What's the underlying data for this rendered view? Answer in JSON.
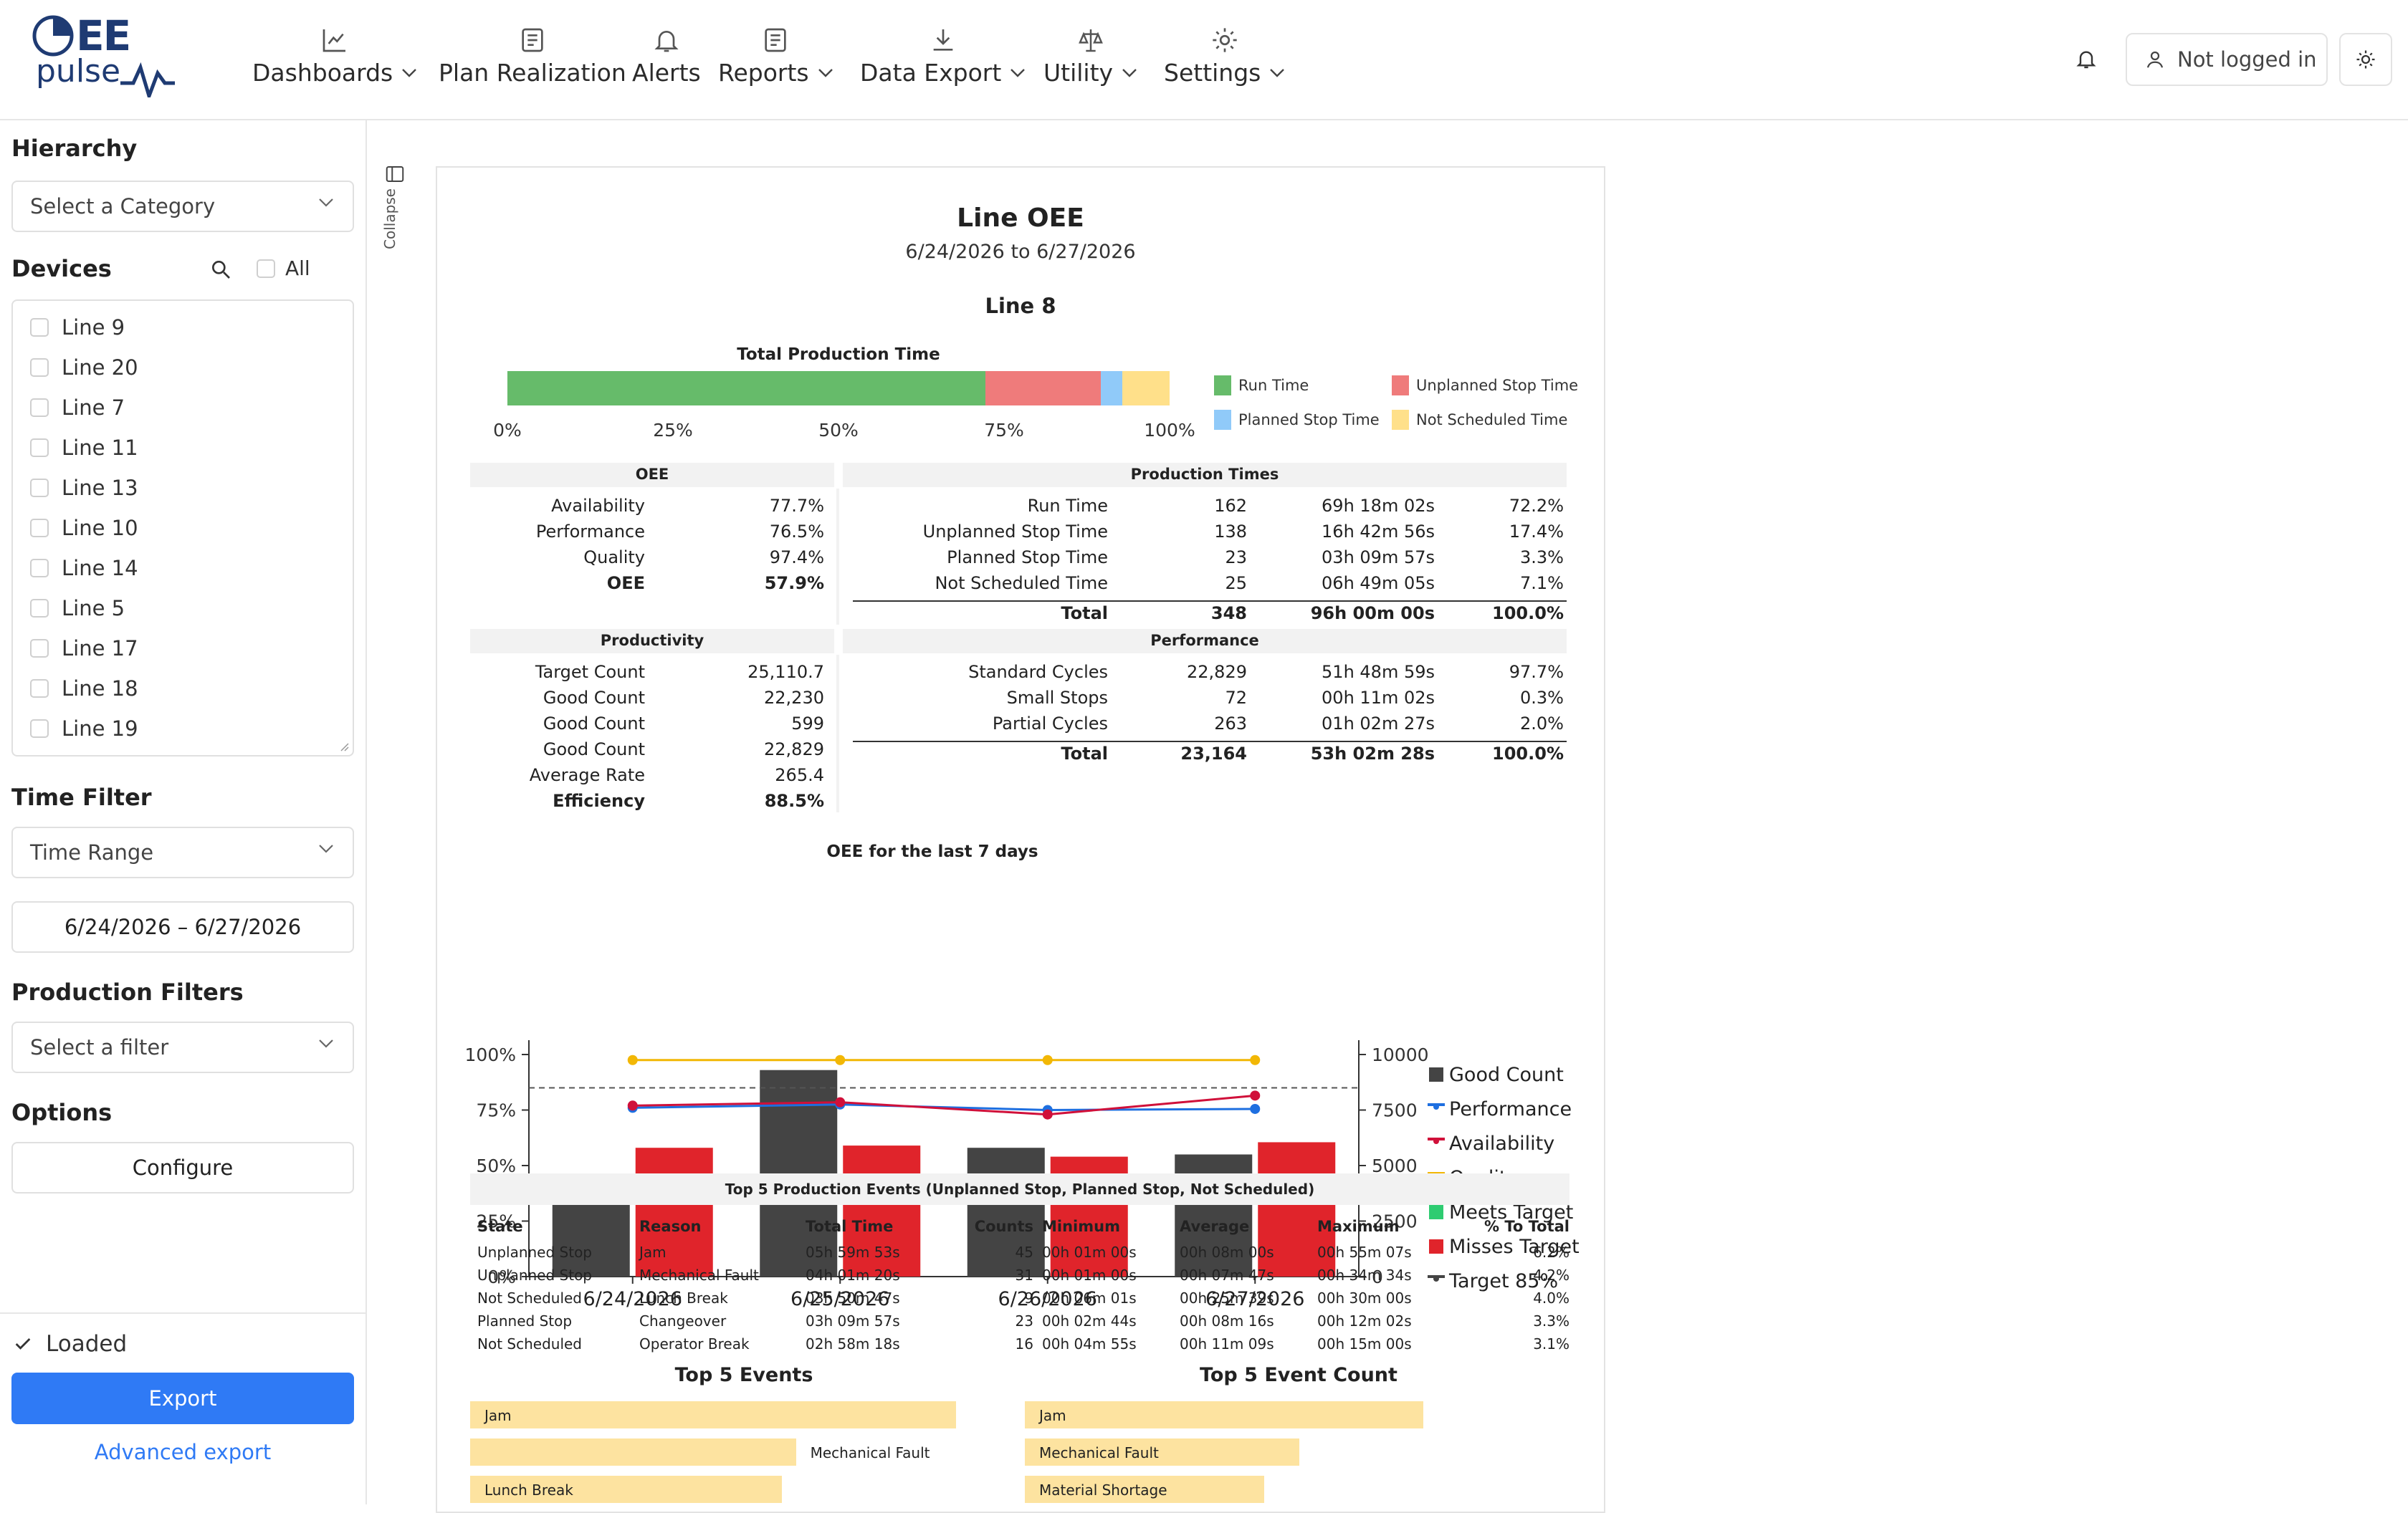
{
  "app": {
    "logo_top": "EE",
    "logo_bottom": "pulse"
  },
  "nav": [
    {
      "label": "Dashboards",
      "icon": "chart-line-icon",
      "has_dropdown": true
    },
    {
      "label": "Plan Realization",
      "icon": "document-icon",
      "has_dropdown": false
    },
    {
      "label": "Alerts",
      "icon": "bell-icon",
      "has_dropdown": false
    },
    {
      "label": "Reports",
      "icon": "document-icon",
      "has_dropdown": true
    },
    {
      "label": "Data Export",
      "icon": "download-icon",
      "has_dropdown": true
    },
    {
      "label": "Utility",
      "icon": "scale-icon",
      "has_dropdown": true
    },
    {
      "label": "Settings",
      "icon": "gear-icon",
      "has_dropdown": true
    }
  ],
  "header": {
    "user_label": "Not logged in"
  },
  "sidebar": {
    "hierarchy_title": "Hierarchy",
    "hierarchy_placeholder": "Select a Category",
    "devices_title": "Devices",
    "all_label": "All",
    "devices": [
      "Line 9",
      "Line 20",
      "Line 7",
      "Line 11",
      "Line 13",
      "Line 10",
      "Line 14",
      "Line 5",
      "Line 17",
      "Line 18",
      "Line 19"
    ],
    "time_filter_title": "Time Filter",
    "time_filter_value": "Time Range",
    "date_range": "6/24/2026 – 6/27/2026",
    "production_filters_title": "Production Filters",
    "production_filter_placeholder": "Select a filter",
    "options_title": "Options",
    "configure_label": "Configure",
    "status_label": "Loaded",
    "export_label": "Export",
    "advanced_export_label": "Advanced export"
  },
  "collapse_label": "Collapse",
  "colors": {
    "run": "#66bb6a",
    "unplanned": "#ef7b7b",
    "planned": "#90caf9",
    "not_scheduled": "#ffe08a",
    "good_count": "#444444",
    "misses_target": "#e0242b",
    "meets_target": "#2ecc71",
    "performance": "#1e6fe0",
    "availability": "#d0103a",
    "quality": "#f2b705",
    "accent": "#2f7af5",
    "bar_event": "#fde3a0"
  },
  "report": {
    "title": "Line OEE",
    "date_range": "6/24/2026 to 6/27/2026",
    "line_name": "Line 8",
    "total_production_title": "Total Production Time",
    "production_bar": [
      {
        "name": "Run Time",
        "pct": 72.2
      },
      {
        "name": "Unplanned Stop Time",
        "pct": 17.4
      },
      {
        "name": "Planned Stop Time",
        "pct": 3.3
      },
      {
        "name": "Not Scheduled Time",
        "pct": 7.1
      }
    ],
    "production_bar_ticks": [
      "0%",
      "25%",
      "50%",
      "75%",
      "100%"
    ],
    "oee_title": "OEE",
    "oee_rows": [
      {
        "label": "Availability",
        "value": "77.7%",
        "bold": false
      },
      {
        "label": "Performance",
        "value": "76.5%",
        "bold": false
      },
      {
        "label": "Quality",
        "value": "97.4%",
        "bold": false
      },
      {
        "label": "OEE",
        "value": "57.9%",
        "bold": true
      }
    ],
    "production_times_title": "Production Times",
    "production_times_rows": [
      {
        "label": "Run Time",
        "count": "162",
        "time": "69h 18m 02s",
        "pct": "72.2%"
      },
      {
        "label": "Unplanned Stop Time",
        "count": "138",
        "time": "16h 42m 56s",
        "pct": "17.4%"
      },
      {
        "label": "Planned Stop Time",
        "count": "23",
        "time": "03h 09m 57s",
        "pct": "3.3%"
      },
      {
        "label": "Not Scheduled Time",
        "count": "25",
        "time": "06h 49m 05s",
        "pct": "7.1%"
      }
    ],
    "production_times_total": {
      "label": "Total",
      "count": "348",
      "time": "96h 00m 00s",
      "pct": "100.0%"
    },
    "productivity_title": "Productivity",
    "productivity_rows": [
      {
        "label": "Target Count",
        "value": "25,110.7",
        "bold": false
      },
      {
        "label": "Good Count",
        "value": "22,230",
        "bold": false
      },
      {
        "label": "Good Count",
        "value": "599",
        "bold": false
      },
      {
        "label": "Good Count",
        "value": "22,829",
        "bold": false
      },
      {
        "label": "Average Rate",
        "value": "265.4",
        "bold": false
      },
      {
        "label": "Efficiency",
        "value": "88.5%",
        "bold": true
      }
    ],
    "performance_title": "Performance",
    "performance_rows": [
      {
        "label": "Standard Cycles",
        "count": "22,829",
        "time": "51h 48m 59s",
        "pct": "97.7%"
      },
      {
        "label": "Small Stops",
        "count": "72",
        "time": "00h 11m 02s",
        "pct": "0.3%"
      },
      {
        "label": "Partial Cycles",
        "count": "263",
        "time": "01h 02m 27s",
        "pct": "2.0%"
      }
    ],
    "performance_total": {
      "label": "Total",
      "count": "23,164",
      "time": "53h 02m 28s",
      "pct": "100.0%"
    },
    "events_title": "Top 5 Production Events (Unplanned Stop, Planned Stop, Not Scheduled)",
    "events_headers": [
      "State",
      "Reason",
      "Total Time",
      "Counts",
      "Minimum",
      "Average",
      "Maximum",
      "% To Total"
    ],
    "events_rows": [
      [
        "Unplanned Stop",
        "Jam",
        "05h 59m 53s",
        "45",
        "00h 01m 00s",
        "00h 08m 00s",
        "00h 55m 07s",
        "6.2%"
      ],
      [
        "Unplanned Stop",
        "Mechanical Fault",
        "04h 01m 20s",
        "31",
        "00h 01m 00s",
        "00h 07m 47s",
        "00h 34m 34s",
        "4.2%"
      ],
      [
        "Not Scheduled",
        "Lunch Break",
        "03h 50m 47s",
        "9",
        "00h 06m 01s",
        "00h 25m 39s",
        "00h 30m 00s",
        "4.0%"
      ],
      [
        "Planned Stop",
        "Changeover",
        "03h 09m 57s",
        "23",
        "00h 02m 44s",
        "00h 08m 16s",
        "00h 12m 02s",
        "3.3%"
      ],
      [
        "Not Scheduled",
        "Operator Break",
        "02h 58m 18s",
        "16",
        "00h 04m 55s",
        "00h 11m 09s",
        "00h 15m 00s",
        "3.1%"
      ]
    ],
    "top5_events_title": "Top 5 Events",
    "top5_events": [
      {
        "label": "Jam",
        "value": 5.998,
        "label_inside": true
      },
      {
        "label": "Mechanical Fault",
        "value": 4.022,
        "label_inside": false
      },
      {
        "label": "Lunch Break",
        "value": 3.846,
        "label_inside": true
      }
    ],
    "top5_count_title": "Top 5 Event Count",
    "top5_count": [
      {
        "label": "Jam",
        "value": 45
      },
      {
        "label": "Mechanical Fault",
        "value": 31
      },
      {
        "label": "Material Shortage",
        "value": 27
      }
    ]
  },
  "chart_data": {
    "type": "bar",
    "title": "OEE for the last 7 days",
    "categories": [
      "6/24/2026",
      "6/25/2026",
      "6/26/2026",
      "6/27/2026"
    ],
    "left_ticks": [
      "0%",
      "25%",
      "50%",
      "75%",
      "100%"
    ],
    "right_ticks": [
      "0",
      "2500",
      "5000",
      "7500",
      "10000"
    ],
    "ylim_left": [
      0,
      100
    ],
    "ylim_right": [
      0,
      10000
    ],
    "series": [
      {
        "name": "Good Count",
        "type": "bar",
        "axis": "right",
        "values": [
          3800,
          9300,
          5800,
          5500
        ]
      },
      {
        "name": "Misses Target",
        "type": "bar",
        "axis": "left",
        "values": [
          58,
          59,
          54,
          60.5
        ]
      },
      {
        "name": "Performance",
        "type": "line",
        "axis": "left",
        "values": [
          76,
          77.5,
          75,
          75.5
        ]
      },
      {
        "name": "Availability",
        "type": "line",
        "axis": "left",
        "values": [
          77,
          78.5,
          73,
          81.5
        ]
      },
      {
        "name": "Quality",
        "type": "line",
        "axis": "left",
        "values": [
          97.5,
          97.5,
          97.5,
          97.5
        ]
      }
    ],
    "target": 85,
    "legend": [
      {
        "name": "Good Count",
        "kind": "square",
        "color": "#444444"
      },
      {
        "name": "Performance",
        "kind": "line",
        "color": "#1e6fe0"
      },
      {
        "name": "Availability",
        "kind": "line",
        "color": "#d0103a"
      },
      {
        "name": "Quality",
        "kind": "line",
        "color": "#f2b705"
      },
      {
        "name": "Meets Target",
        "kind": "square",
        "color": "#2ecc71"
      },
      {
        "name": "Misses Target",
        "kind": "square",
        "color": "#e0242b"
      },
      {
        "name": "Target 85%",
        "kind": "line",
        "color": "#444444"
      }
    ],
    "legend_position": "right"
  }
}
